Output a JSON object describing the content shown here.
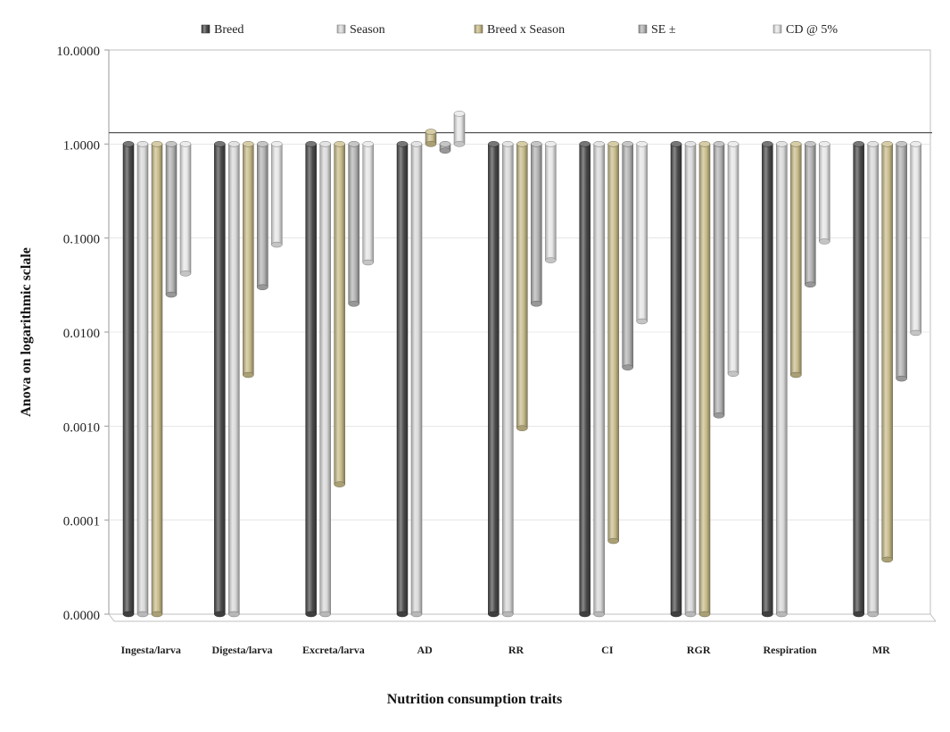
{
  "chart_data": {
    "type": "bar",
    "title": "",
    "xlabel": "Nutrition consumption traits",
    "ylabel": "Anova on logarithmic sclale",
    "yscale": "log",
    "ylim": [
      1e-05,
      10
    ],
    "yticks": [
      {
        "value": 10,
        "label": "10.0000"
      },
      {
        "value": 1,
        "label": "1.0000"
      },
      {
        "value": 0.1,
        "label": "0.1000"
      },
      {
        "value": 0.01,
        "label": "0.0100"
      },
      {
        "value": 0.001,
        "label": "0.0010"
      },
      {
        "value": 0.0001,
        "label": "0.0001"
      },
      {
        "value": 1e-05,
        "label": "0.0000"
      }
    ],
    "reference_line": 1.32,
    "legend_position": "top",
    "categories": [
      "Ingesta/larva",
      "Digesta/larva",
      "Excreta/larva",
      "AD",
      "RR",
      "CI",
      "RGR",
      "Respiration",
      "MR"
    ],
    "series": [
      {
        "name": "Breed",
        "color": "#4a4a4a",
        "values": [
          1e-05,
          1e-05,
          1e-05,
          1e-05,
          1e-05,
          1e-05,
          1e-05,
          1e-05,
          1e-05
        ]
      },
      {
        "name": "Season",
        "color": "#d9d9d9",
        "values": [
          1e-05,
          1e-05,
          1e-05,
          1e-05,
          1e-05,
          1e-05,
          1e-05,
          1e-05,
          1e-05
        ]
      },
      {
        "name": "Breed x Season",
        "color": "#c8bc8a",
        "values": [
          1e-05,
          0.0035,
          0.00024,
          1.35,
          0.00095,
          6e-05,
          1e-05,
          0.0035,
          3.8e-05
        ]
      },
      {
        "name": "SE ±",
        "color": "#b3b3b3",
        "values": [
          0.025,
          0.03,
          0.02,
          0.85,
          0.02,
          0.0042,
          0.0013,
          0.032,
          0.0032
        ]
      },
      {
        "name": "CD @ 5%",
        "color": "#e6e6e6",
        "values": [
          0.042,
          0.085,
          0.055,
          2.1,
          0.058,
          0.013,
          0.0036,
          0.092,
          0.0098
        ]
      }
    ]
  }
}
